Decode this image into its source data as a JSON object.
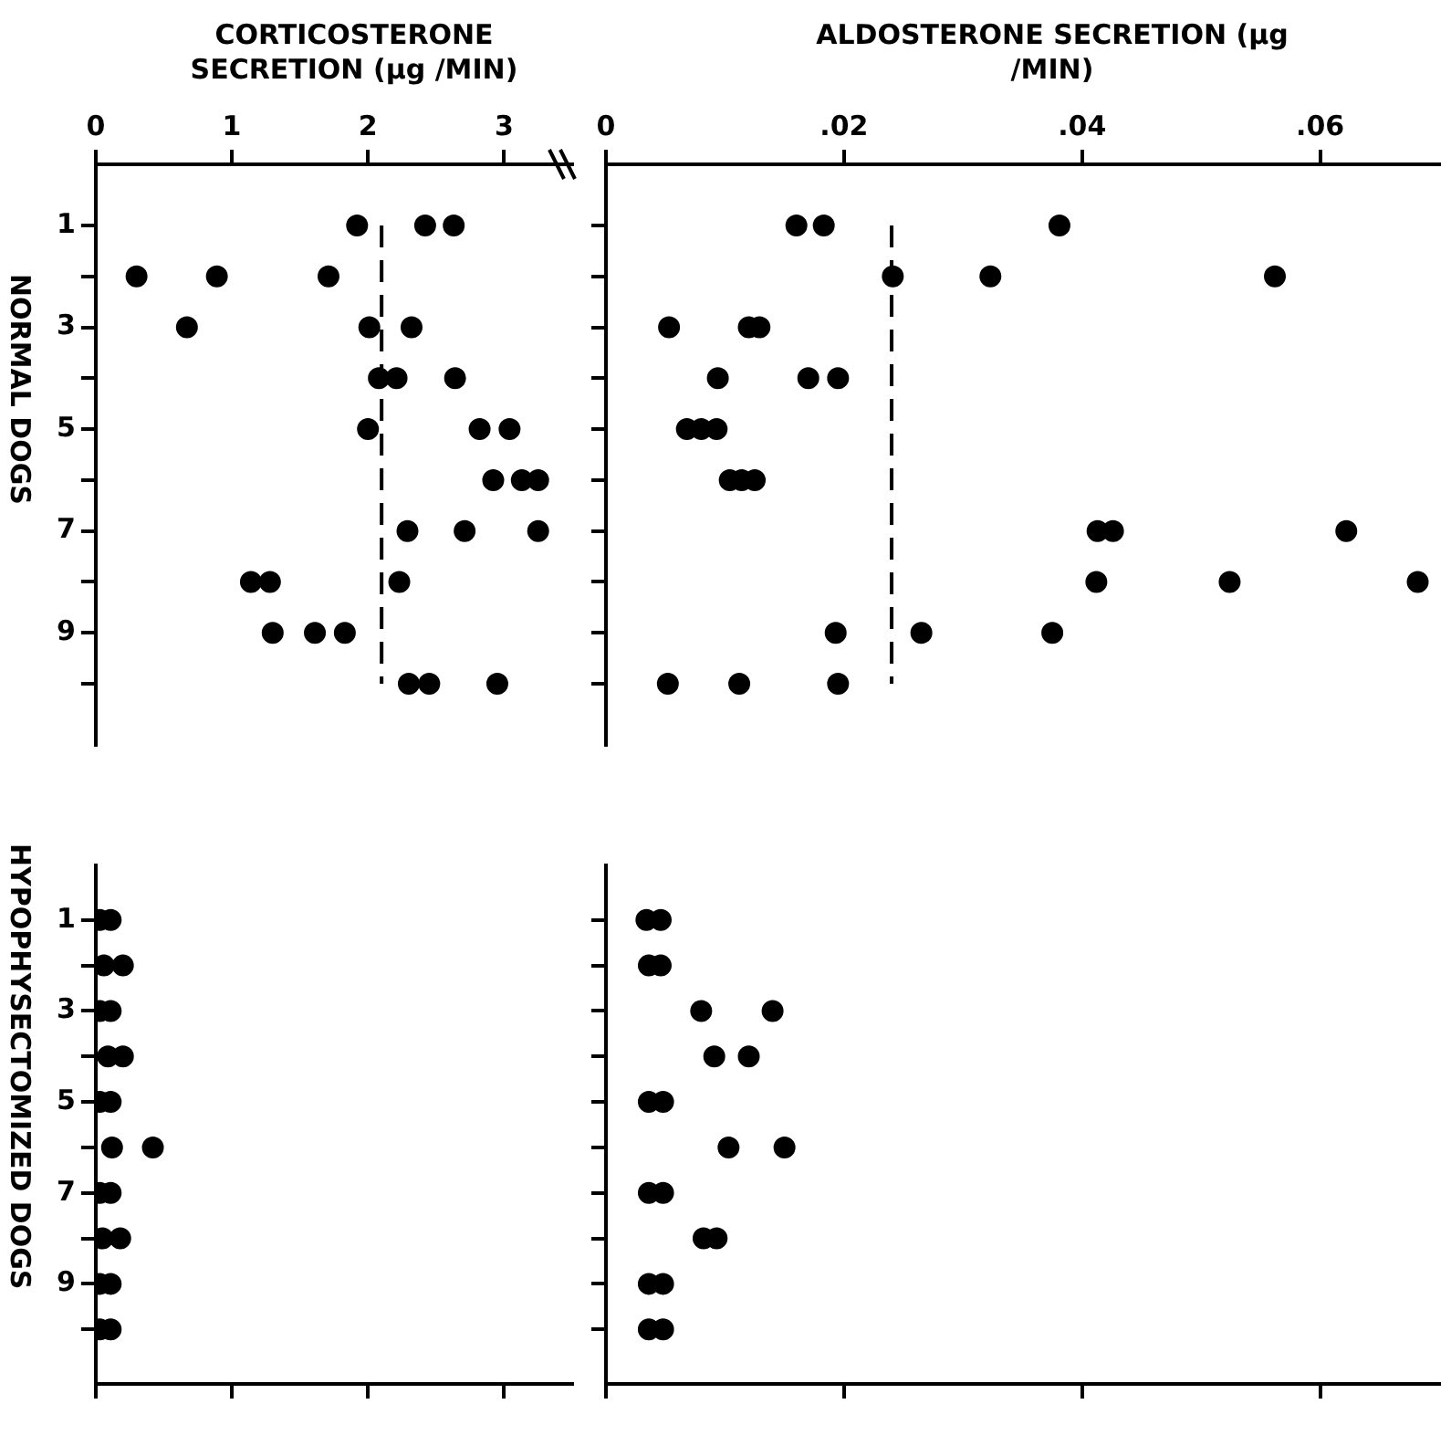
{
  "chart_data": [
    {
      "type": "scatter",
      "xlabel": "CORTICOSTERONE SECRETION (μg /MIN)",
      "ylabel": "NORMAL DOGS",
      "xlim": [
        0,
        3.5
      ],
      "xticks": [
        0,
        1,
        2,
        3
      ],
      "ylim": [
        11.2,
        -0.2
      ],
      "yticks": [
        1,
        {
          "value": 2,
          "label": null
        },
        3,
        {
          "value": 4,
          "label": null
        },
        5,
        {
          "value": 6,
          "label": null
        },
        7,
        {
          "value": 8,
          "label": null
        },
        9,
        {
          "value": 10,
          "label": null
        }
      ],
      "marker": "circle",
      "series": [
        {
          "color": "#000000",
          "x": [
            1.92,
            2.42,
            2.63,
            0.3,
            0.89,
            1.71,
            0.67,
            2.01,
            2.32,
            2.08,
            2.21,
            2.64,
            2.0,
            2.82,
            3.04,
            2.92,
            3.13,
            3.25,
            2.29,
            2.71,
            3.25,
            1.14,
            1.28,
            2.23,
            1.3,
            1.61,
            1.83,
            2.3,
            2.45,
            2.95
          ],
          "values": [
            1,
            1,
            1,
            2,
            2,
            2,
            3,
            3,
            3,
            4,
            4,
            4,
            5,
            5,
            5,
            6,
            6,
            6,
            7,
            7,
            7,
            8,
            8,
            8,
            9,
            9,
            9,
            10,
            10,
            10
          ]
        }
      ],
      "ref_lines": [
        {
          "axis": "x",
          "value": 2.1,
          "line_style": "dashed"
        }
      ]
    },
    {
      "type": "scatter",
      "xlabel": "ALDOSTERONE SECRETION (μg /MIN)",
      "xlim": [
        0,
        0.07
      ],
      "xticks": [
        0,
        {
          "value": 0.02,
          "label": ".02"
        },
        {
          "value": 0.04,
          "label": ".04"
        },
        {
          "value": 0.06,
          "label": ".06"
        }
      ],
      "ylim": [
        11.2,
        -0.2
      ],
      "yticks": [
        {
          "value": 1,
          "label": null
        },
        {
          "value": 2,
          "label": null
        },
        {
          "value": 3,
          "label": null
        },
        {
          "value": 4,
          "label": null
        },
        {
          "value": 5,
          "label": null
        },
        {
          "value": 6,
          "label": null
        },
        {
          "value": 7,
          "label": null
        },
        {
          "value": 8,
          "label": null
        },
        {
          "value": 9,
          "label": null
        },
        {
          "value": 10,
          "label": null
        }
      ],
      "tick_labels": "x",
      "marker": "circle",
      "series": [
        {
          "color": "#000000",
          "x": [
            0.016,
            0.0183,
            0.0381,
            0.0241,
            0.0323,
            0.0562,
            0.0053,
            0.012,
            0.0129,
            0.0094,
            0.017,
            0.0195,
            0.0068,
            0.008,
            0.0093,
            0.0104,
            0.0114,
            0.0125,
            0.0413,
            0.0426,
            0.0622,
            0.0412,
            0.0524,
            0.0682,
            0.0193,
            0.0265,
            0.0375,
            0.0052,
            0.0112,
            0.0195
          ],
          "values": [
            1,
            1,
            1,
            2,
            2,
            2,
            3,
            3,
            3,
            4,
            4,
            4,
            5,
            5,
            5,
            6,
            6,
            6,
            7,
            7,
            7,
            8,
            8,
            8,
            9,
            9,
            9,
            10,
            10,
            10
          ]
        }
      ],
      "ref_lines": [
        {
          "axis": "x",
          "value": 0.024,
          "line_style": "dashed"
        }
      ]
    },
    {
      "type": "scatter",
      "ylabel": "HYPOPHYSECTOMIZED DOGS",
      "xlim": [
        0,
        3.5
      ],
      "xticks": [
        0,
        1,
        2,
        3
      ],
      "ylim": [
        11.2,
        -0.2
      ],
      "yticks": [
        1,
        {
          "value": 2,
          "label": null
        },
        3,
        {
          "value": 4,
          "label": null
        },
        5,
        {
          "value": 6,
          "label": null
        },
        7,
        {
          "value": 8,
          "label": null
        },
        9,
        {
          "value": 10,
          "label": null
        }
      ],
      "tick_labels": "y",
      "marker": "circle",
      "series": [
        {
          "color": "#000000",
          "x": [
            0.03,
            0.11,
            0.06,
            0.2,
            0.03,
            0.11,
            0.09,
            0.2,
            0.03,
            0.11,
            0.12,
            0.42,
            0.03,
            0.11,
            0.05,
            0.18,
            0.03,
            0.11,
            0.03,
            0.11
          ],
          "values": [
            1,
            1,
            2,
            2,
            3,
            3,
            4,
            4,
            5,
            5,
            6,
            6,
            7,
            7,
            8,
            8,
            9,
            9,
            10,
            10
          ]
        }
      ]
    },
    {
      "type": "scatter",
      "xlim": [
        0,
        0.07
      ],
      "xticks": [
        0,
        0.02,
        0.04,
        0.06
      ],
      "ylim": [
        11.2,
        -0.2
      ],
      "yticks": [
        {
          "value": 1,
          "label": null
        },
        {
          "value": 2,
          "label": null
        },
        {
          "value": 3,
          "label": null
        },
        {
          "value": 4,
          "label": null
        },
        {
          "value": 5,
          "label": null
        },
        {
          "value": 6,
          "label": null
        },
        {
          "value": 7,
          "label": null
        },
        {
          "value": 8,
          "label": null
        },
        {
          "value": 9,
          "label": null
        },
        {
          "value": 10,
          "label": null
        }
      ],
      "tick_labels": false,
      "marker": "circle",
      "series": [
        {
          "color": "#000000",
          "x": [
            0.0034,
            0.0046,
            0.0036,
            0.0046,
            0.008,
            0.014,
            0.0091,
            0.012,
            0.0036,
            0.0048,
            0.0103,
            0.015,
            0.0036,
            0.0048,
            0.0082,
            0.0093,
            0.0036,
            0.0048,
            0.0036,
            0.0048
          ],
          "values": [
            1,
            1,
            2,
            2,
            3,
            3,
            4,
            4,
            5,
            5,
            6,
            6,
            7,
            7,
            8,
            8,
            9,
            9,
            10,
            10
          ]
        }
      ]
    }
  ]
}
